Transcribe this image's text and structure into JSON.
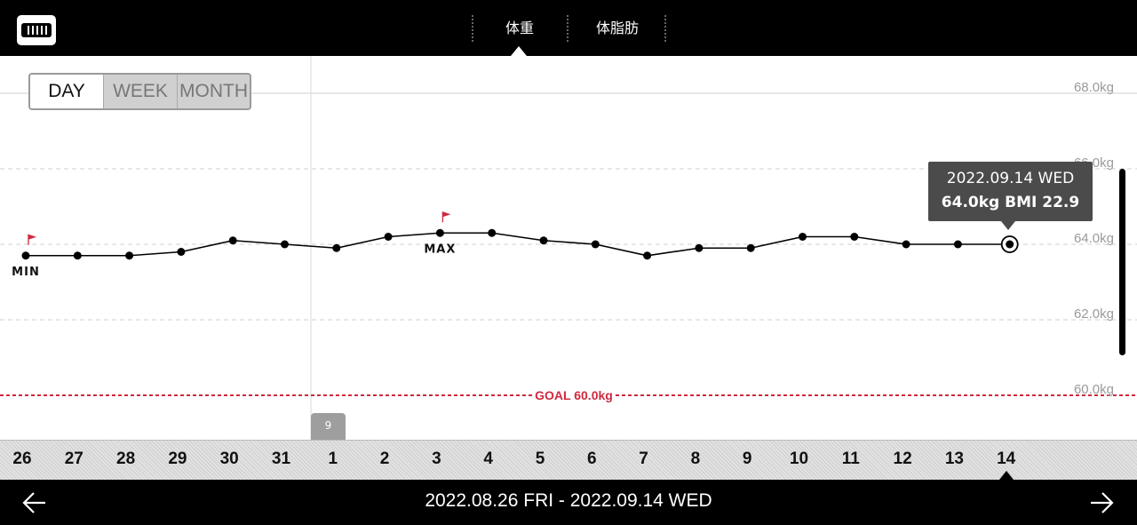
{
  "header": {
    "logo_icon": "scale-logo-icon",
    "tabs": [
      {
        "label": "体重",
        "active": true
      },
      {
        "label": "体脂肪",
        "active": false
      }
    ]
  },
  "period_toggle": {
    "options": [
      "DAY",
      "WEEK",
      "MONTH"
    ],
    "selected": "DAY"
  },
  "chart_data": {
    "type": "line",
    "x": [
      "26",
      "27",
      "28",
      "29",
      "30",
      "31",
      "1",
      "2",
      "3",
      "4",
      "5",
      "6",
      "7",
      "8",
      "9",
      "10",
      "11",
      "12",
      "13",
      "14"
    ],
    "series": [
      {
        "values": [
          63.7,
          63.7,
          63.7,
          63.8,
          64.1,
          64.0,
          63.9,
          64.2,
          64.3,
          64.3,
          64.1,
          64.0,
          63.7,
          63.9,
          63.9,
          64.2,
          64.2,
          64.0,
          64.0,
          64.0
        ],
        "color": "#000000"
      }
    ],
    "ylim": [
      60.0,
      68.0
    ],
    "ytick_labels": [
      "68.0kg",
      "66.0kg",
      "64.0kg",
      "62.0kg",
      "60.0kg"
    ],
    "ytick_values": [
      68,
      66,
      64,
      62,
      60
    ],
    "goal": {
      "value": 60.0,
      "label": "GOAL 60.0kg",
      "color": "#d0293f"
    },
    "min_marker": {
      "index": 0,
      "label": "MIN"
    },
    "max_marker": {
      "index": 8,
      "label": "MAX"
    },
    "selected_index": 19,
    "flag_color": "#d0293f",
    "grid": true
  },
  "tooltip": {
    "date": "2022.09.14 WED",
    "info": "64.0kg  BMI 22.9"
  },
  "month_tag": "9",
  "footer": {
    "range": "2022.08.26 FRI - 2022.09.14 WED",
    "prev_icon": "arrow-left-icon",
    "next_icon": "arrow-right-icon"
  }
}
